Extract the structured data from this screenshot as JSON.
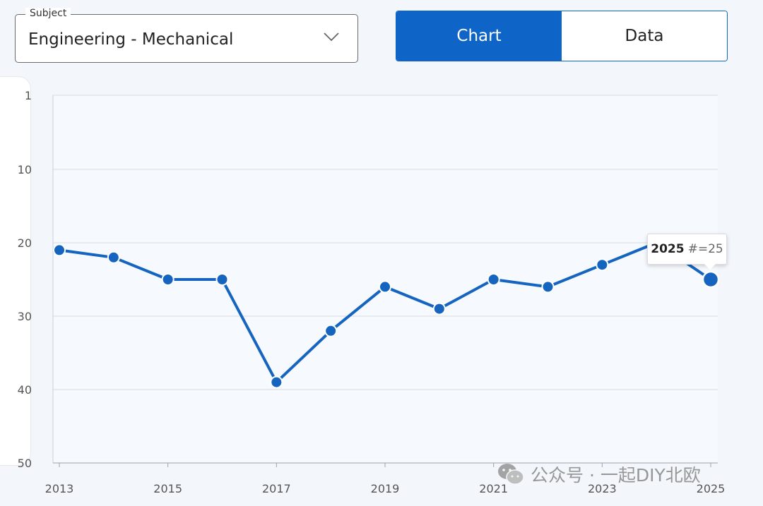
{
  "subject": {
    "label": "Subject",
    "value": "Engineering - Mechanical"
  },
  "view_toggle": {
    "chart_label": "Chart",
    "data_label": "Data",
    "active": "Chart"
  },
  "tooltip": {
    "year": "2025",
    "rank": "#=25"
  },
  "watermark": {
    "text": "公众号 · 一起DIY北欧",
    "icon": "wechat-icon"
  },
  "colors": {
    "accent": "#0f64c8",
    "line": "#1565c0",
    "grid": "#d5dbe3",
    "background": "#f3f7fc"
  },
  "chart_data": {
    "type": "line",
    "x": [
      2013,
      2014,
      2015,
      2016,
      2017,
      2018,
      2019,
      2020,
      2021,
      2022,
      2023,
      2024,
      2025
    ],
    "series": [
      {
        "values": [
          21,
          22,
          25,
          25,
          39,
          32,
          26,
          29,
          25,
          26,
          23,
          20,
          25
        ]
      }
    ],
    "x_tick_labels": [
      "2013",
      "2015",
      "2017",
      "2019",
      "2021",
      "2023",
      "2025"
    ],
    "y_tick_labels": [
      "1",
      "10",
      "20",
      "30",
      "40",
      "50"
    ],
    "ylim": [
      1,
      50
    ],
    "y_inverted": true,
    "grid": true,
    "highlighted_point": 2025
  }
}
